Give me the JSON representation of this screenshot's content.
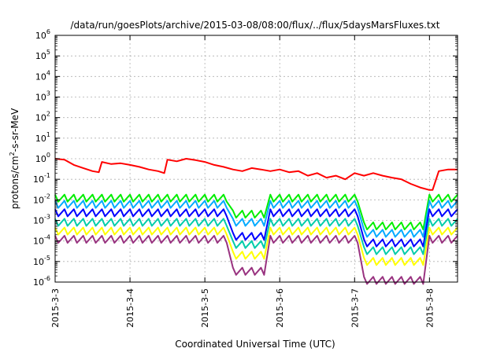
{
  "chart_data": {
    "type": "line",
    "title": "/data/run/goesPlots/archive/2015-03-08/08:00/flux/../flux/5daysMarsFluxes.txt",
    "xlabel": "Coordinated Universal Time (UTC)",
    "ylabel_prefix": "protons/cm",
    "ylabel_superscript": "2",
    "ylabel_suffix": "-s-sr-MeV",
    "x_axis_type": "date",
    "xlim": [
      "2015-03-03",
      "2015-03-08 09:00"
    ],
    "x_tick_labels": [
      "2015-3-3",
      "2015-3-4",
      "2015-3-5",
      "2015-3-6",
      "2015-3-7",
      "2015-3-8"
    ],
    "yscale": "log",
    "ylim": [
      1e-06,
      1000000.0
    ],
    "y_tick_labels": [
      {
        "base": "10",
        "exp": "-6"
      },
      {
        "base": "10",
        "exp": "-5"
      },
      {
        "base": "10",
        "exp": "-4"
      },
      {
        "base": "10",
        "exp": "-3"
      },
      {
        "base": "10",
        "exp": "-2"
      },
      {
        "base": "10",
        "exp": "-1"
      },
      {
        "base": "10",
        "exp": "0"
      },
      {
        "base": "10",
        "exp": "1"
      },
      {
        "base": "10",
        "exp": "2"
      },
      {
        "base": "10",
        "exp": "3"
      },
      {
        "base": "10",
        "exp": "4"
      },
      {
        "base": "10",
        "exp": "5"
      },
      {
        "base": "10",
        "exp": "6"
      }
    ],
    "grid": true,
    "legend": "none",
    "series": [
      {
        "color": "#ff0000",
        "x": [
          "2015-03-03 00:00",
          "2015-03-03 03:00",
          "2015-03-03 06:00",
          "2015-03-03 09:00",
          "2015-03-03 12:00",
          "2015-03-03 14:00",
          "2015-03-03 15:00",
          "2015-03-03 18:00",
          "2015-03-03 21:00",
          "2015-03-04 00:00",
          "2015-03-04 03:00",
          "2015-03-04 06:00",
          "2015-03-04 09:00",
          "2015-03-04 11:00",
          "2015-03-04 12:00",
          "2015-03-04 15:00",
          "2015-03-04 18:00",
          "2015-03-04 21:00",
          "2015-03-05 00:00",
          "2015-03-05 03:00",
          "2015-03-05 06:00",
          "2015-03-05 09:00",
          "2015-03-05 12:00",
          "2015-03-05 15:00",
          "2015-03-05 18:00",
          "2015-03-05 21:00",
          "2015-03-06 00:00",
          "2015-03-06 03:00",
          "2015-03-06 06:00",
          "2015-03-06 09:00",
          "2015-03-06 12:00",
          "2015-03-06 15:00",
          "2015-03-06 18:00",
          "2015-03-06 21:00",
          "2015-03-07 00:00",
          "2015-03-07 03:00",
          "2015-03-07 06:00",
          "2015-03-07 09:00",
          "2015-03-07 12:00",
          "2015-03-07 15:00",
          "2015-03-07 18:00",
          "2015-03-07 21:00",
          "2015-03-08 00:00",
          "2015-03-08 01:00",
          "2015-03-08 03:00",
          "2015-03-08 06:00",
          "2015-03-08 09:00"
        ],
        "y": [
          1.0,
          0.9,
          0.5,
          0.35,
          0.25,
          0.22,
          0.7,
          0.55,
          0.6,
          0.5,
          0.4,
          0.3,
          0.25,
          0.2,
          0.9,
          0.75,
          1.0,
          0.85,
          0.7,
          0.5,
          0.4,
          0.3,
          0.25,
          0.35,
          0.3,
          0.25,
          0.3,
          0.22,
          0.25,
          0.15,
          0.2,
          0.12,
          0.15,
          0.1,
          0.2,
          0.15,
          0.2,
          0.15,
          0.12,
          0.1,
          0.06,
          0.04,
          0.03,
          0.03,
          0.25,
          0.3,
          0.3
        ]
      },
      {
        "color": "#00ee00",
        "base": 0.018,
        "dip1": 0.003,
        "dip2": 0.0008
      },
      {
        "color": "#00aaff",
        "base": 0.009,
        "dip1": 0.0012,
        "dip2": 0.00035
      },
      {
        "color": "#0000ff",
        "base": 0.0035,
        "dip1": 0.00025,
        "dip2": 0.00012
      },
      {
        "color": "#00ccaa",
        "base": 0.0012,
        "dip1": 0.0001,
        "dip2": 5e-05
      },
      {
        "color": "#ffff00",
        "base": 0.00045,
        "dip1": 3e-05,
        "dip2": 1.5e-05
      },
      {
        "color": "#993380",
        "base": 0.00018,
        "dip1": 5e-06,
        "dip2": 1.8e-06
      }
    ]
  }
}
